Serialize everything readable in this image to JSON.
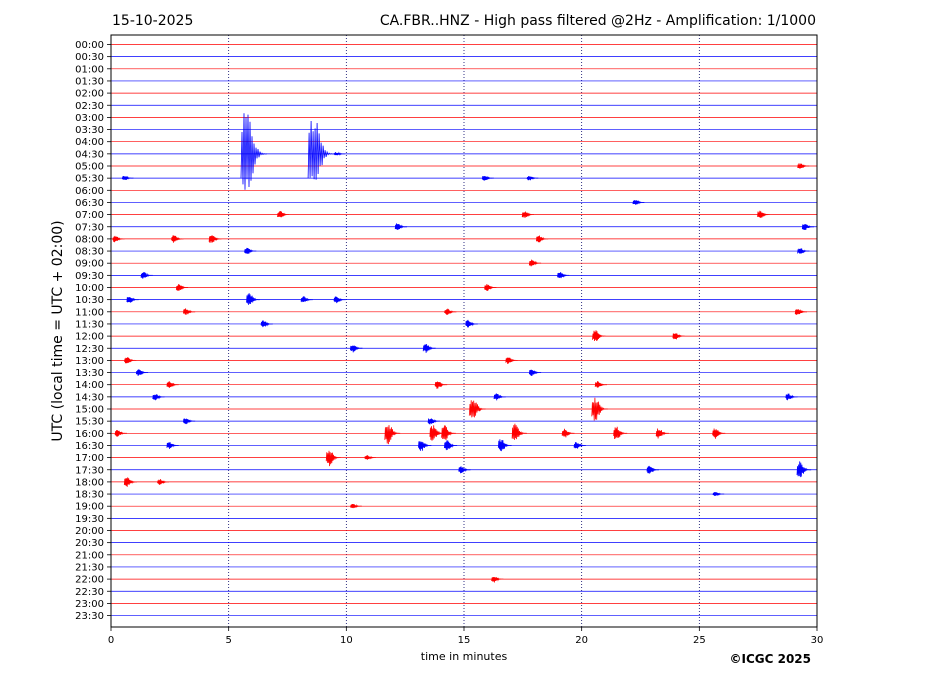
{
  "header": {
    "date": "15-10-2025",
    "title": "CA.FBR..HNZ - High pass filtered @2Hz - Amplification: 1/1000"
  },
  "copyright": "©ICGC 2025",
  "chart_data": {
    "type": "line",
    "title": "CA.FBR..HNZ - High pass filtered @2Hz - Amplification: 1/1000",
    "xlabel": "time in minutes",
    "ylabel": "UTC (local time = UTC + 02:00)",
    "xlim": [
      0,
      30
    ],
    "xticks": [
      "0",
      "5",
      "10",
      "15",
      "20",
      "25",
      "30"
    ],
    "vertical_grid_minutes": [
      5,
      10,
      15,
      20,
      25
    ],
    "grid": "dotted-vertical",
    "trace_colors": [
      "#ff0000",
      "#0000ff"
    ],
    "rows": [
      "00:00",
      "00:30",
      "01:00",
      "01:30",
      "02:00",
      "02:30",
      "03:00",
      "03:30",
      "04:00",
      "04:30",
      "05:00",
      "05:30",
      "06:00",
      "06:30",
      "07:00",
      "07:30",
      "08:00",
      "08:30",
      "09:00",
      "09:30",
      "10:00",
      "10:30",
      "11:00",
      "11:30",
      "12:00",
      "12:30",
      "13:00",
      "13:30",
      "14:00",
      "14:30",
      "15:00",
      "15:30",
      "16:00",
      "16:30",
      "17:00",
      "17:30",
      "18:00",
      "18:30",
      "19:00",
      "19:30",
      "20:00",
      "20:30",
      "21:00",
      "21:30",
      "22:00",
      "22:30",
      "23:00",
      "23:30"
    ],
    "events": [
      {
        "row": "04:30",
        "minute": 5.8,
        "amp": 3.6
      },
      {
        "row": "04:30",
        "minute": 8.65,
        "amp": 3.2
      },
      {
        "row": "04:30",
        "minute": 9.6,
        "amp": 0.15
      },
      {
        "row": "05:00",
        "minute": 29.3,
        "amp": 0.25
      },
      {
        "row": "05:30",
        "minute": 0.6,
        "amp": 0.2
      },
      {
        "row": "05:30",
        "minute": 15.9,
        "amp": 0.25
      },
      {
        "row": "05:30",
        "minute": 17.8,
        "amp": 0.2
      },
      {
        "row": "06:30",
        "minute": 22.3,
        "amp": 0.25
      },
      {
        "row": "07:00",
        "minute": 7.2,
        "amp": 0.3
      },
      {
        "row": "07:00",
        "minute": 17.6,
        "amp": 0.3
      },
      {
        "row": "07:00",
        "minute": 27.6,
        "amp": 0.35
      },
      {
        "row": "07:30",
        "minute": 12.2,
        "amp": 0.3
      },
      {
        "row": "07:30",
        "minute": 29.5,
        "amp": 0.3
      },
      {
        "row": "08:00",
        "minute": 0.2,
        "amp": 0.3
      },
      {
        "row": "08:00",
        "minute": 2.7,
        "amp": 0.35
      },
      {
        "row": "08:00",
        "minute": 4.3,
        "amp": 0.4
      },
      {
        "row": "08:00",
        "minute": 18.2,
        "amp": 0.3
      },
      {
        "row": "08:30",
        "minute": 5.8,
        "amp": 0.3
      },
      {
        "row": "08:30",
        "minute": 29.3,
        "amp": 0.3
      },
      {
        "row": "09:00",
        "minute": 17.9,
        "amp": 0.3
      },
      {
        "row": "09:30",
        "minute": 1.4,
        "amp": 0.3
      },
      {
        "row": "09:30",
        "minute": 19.1,
        "amp": 0.3
      },
      {
        "row": "10:00",
        "minute": 2.9,
        "amp": 0.3
      },
      {
        "row": "10:00",
        "minute": 16.0,
        "amp": 0.3
      },
      {
        "row": "10:30",
        "minute": 0.8,
        "amp": 0.3
      },
      {
        "row": "10:30",
        "minute": 5.9,
        "amp": 0.55
      },
      {
        "row": "10:30",
        "minute": 8.2,
        "amp": 0.3
      },
      {
        "row": "10:30",
        "minute": 9.6,
        "amp": 0.3
      },
      {
        "row": "11:00",
        "minute": 3.2,
        "amp": 0.3
      },
      {
        "row": "11:00",
        "minute": 14.3,
        "amp": 0.3
      },
      {
        "row": "11:00",
        "minute": 29.2,
        "amp": 0.3
      },
      {
        "row": "11:30",
        "minute": 6.5,
        "amp": 0.3
      },
      {
        "row": "11:30",
        "minute": 15.2,
        "amp": 0.35
      },
      {
        "row": "12:00",
        "minute": 20.6,
        "amp": 0.5
      },
      {
        "row": "12:00",
        "minute": 24.0,
        "amp": 0.3
      },
      {
        "row": "12:30",
        "minute": 10.3,
        "amp": 0.35
      },
      {
        "row": "12:30",
        "minute": 13.4,
        "amp": 0.4
      },
      {
        "row": "13:00",
        "minute": 0.7,
        "amp": 0.3
      },
      {
        "row": "13:00",
        "minute": 16.9,
        "amp": 0.3
      },
      {
        "row": "13:30",
        "minute": 1.2,
        "amp": 0.3
      },
      {
        "row": "13:30",
        "minute": 17.9,
        "amp": 0.3
      },
      {
        "row": "14:00",
        "minute": 2.5,
        "amp": 0.3
      },
      {
        "row": "14:00",
        "minute": 13.9,
        "amp": 0.35
      },
      {
        "row": "14:00",
        "minute": 20.7,
        "amp": 0.3
      },
      {
        "row": "14:30",
        "minute": 1.9,
        "amp": 0.3
      },
      {
        "row": "14:30",
        "minute": 16.4,
        "amp": 0.3
      },
      {
        "row": "14:30",
        "minute": 28.8,
        "amp": 0.3
      },
      {
        "row": "15:00",
        "minute": 15.4,
        "amp": 1.05
      },
      {
        "row": "15:00",
        "minute": 20.6,
        "amp": 1.0
      },
      {
        "row": "15:30",
        "minute": 3.2,
        "amp": 0.3
      },
      {
        "row": "15:30",
        "minute": 13.6,
        "amp": 0.3
      },
      {
        "row": "16:00",
        "minute": 0.3,
        "amp": 0.3
      },
      {
        "row": "16:00",
        "minute": 11.8,
        "amp": 0.9
      },
      {
        "row": "16:00",
        "minute": 13.7,
        "amp": 0.7
      },
      {
        "row": "16:00",
        "minute": 14.2,
        "amp": 0.7
      },
      {
        "row": "16:00",
        "minute": 17.2,
        "amp": 0.8
      },
      {
        "row": "16:00",
        "minute": 19.3,
        "amp": 0.4
      },
      {
        "row": "16:00",
        "minute": 21.5,
        "amp": 0.6
      },
      {
        "row": "16:00",
        "minute": 23.3,
        "amp": 0.45
      },
      {
        "row": "16:00",
        "minute": 25.7,
        "amp": 0.45
      },
      {
        "row": "16:30",
        "minute": 2.5,
        "amp": 0.3
      },
      {
        "row": "16:30",
        "minute": 13.2,
        "amp": 0.5
      },
      {
        "row": "16:30",
        "minute": 14.3,
        "amp": 0.45
      },
      {
        "row": "16:30",
        "minute": 16.6,
        "amp": 0.55
      },
      {
        "row": "16:30",
        "minute": 19.8,
        "amp": 0.3
      },
      {
        "row": "17:00",
        "minute": 9.3,
        "amp": 0.75
      },
      {
        "row": "17:00",
        "minute": 10.9,
        "amp": 0.2
      },
      {
        "row": "17:30",
        "minute": 14.9,
        "amp": 0.3
      },
      {
        "row": "17:30",
        "minute": 22.9,
        "amp": 0.35
      },
      {
        "row": "17:30",
        "minute": 29.3,
        "amp": 0.7
      },
      {
        "row": "18:00",
        "minute": 0.7,
        "amp": 0.45
      },
      {
        "row": "18:00",
        "minute": 2.1,
        "amp": 0.25
      },
      {
        "row": "18:30",
        "minute": 25.7,
        "amp": 0.2
      },
      {
        "row": "19:00",
        "minute": 10.3,
        "amp": 0.2
      },
      {
        "row": "22:00",
        "minute": 16.3,
        "amp": 0.3
      }
    ]
  }
}
